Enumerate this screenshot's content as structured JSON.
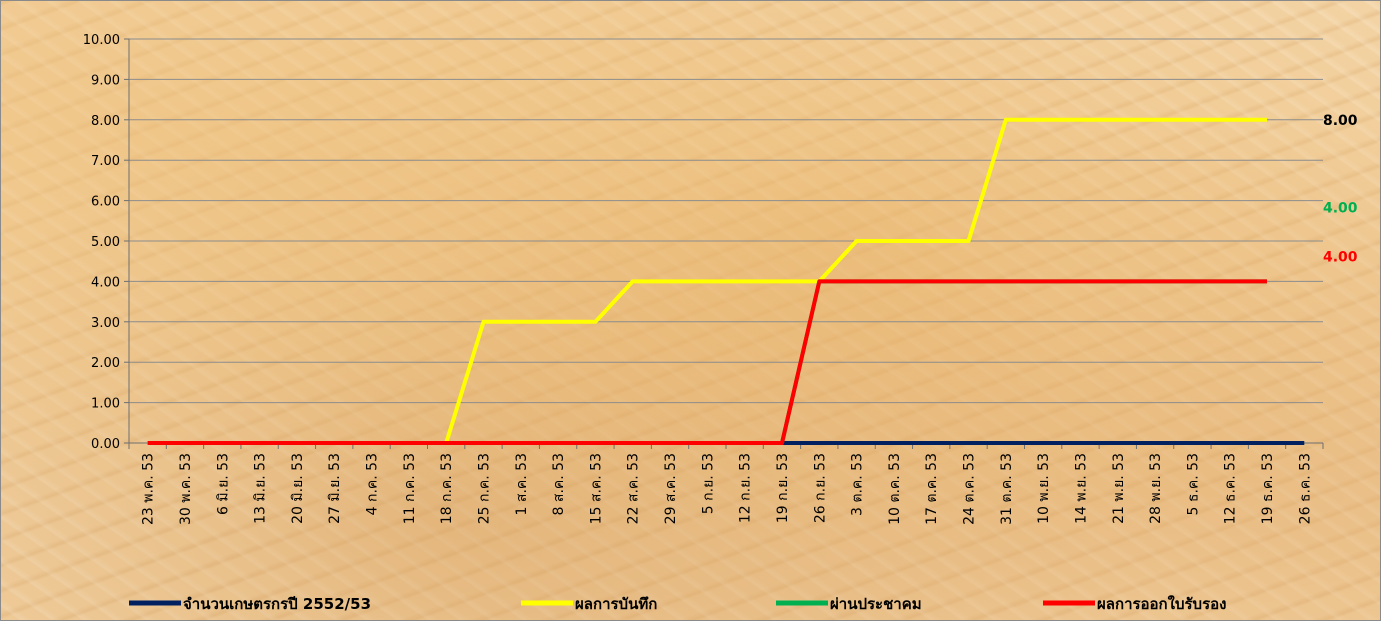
{
  "chart_data": {
    "type": "line",
    "title": "",
    "xlabel": "",
    "ylabel": "",
    "ylim": [
      0,
      10
    ],
    "y_tick_labels": [
      "0.00",
      "1.00",
      "2.00",
      "3.00",
      "4.00",
      "5.00",
      "6.00",
      "7.00",
      "8.00",
      "9.00",
      "10.00"
    ],
    "grid": true,
    "legend_position": "bottom",
    "categories": [
      "23 พ.ค. 53",
      "30 พ.ค. 53",
      "6 มิ.ย. 53",
      "13 มิ.ย. 53",
      "20 มิ.ย. 53",
      "27 มิ.ย. 53",
      "4 ก.ค. 53",
      "11 ก.ค. 53",
      "18 ก.ค. 53",
      "25 ก.ค. 53",
      "1 ส.ค. 53",
      "8 ส.ค. 53",
      "15 ส.ค. 53",
      "22 ส.ค. 53",
      "29 ส.ค. 53",
      "5 ก.ย. 53",
      "12 ก.ย. 53",
      "19 ก.ย. 53",
      "26 ก.ย. 53",
      "3 ต.ค. 53",
      "10 ต.ค. 53",
      "17 ต.ค. 53",
      "24 ต.ค. 53",
      "31 ต.ค. 53",
      "10 พ.ย. 53",
      "14 พ.ย. 53",
      "21 พ.ย. 53",
      "28 พ.ย. 53",
      "5 ธ.ค. 53",
      "12 ธ.ค. 53",
      "19 ธ.ค. 53",
      "26 ธ.ค. 53"
    ],
    "series": [
      {
        "name": "จำนวนเกษตรกรปี  2552/53",
        "color": "#002060",
        "values": [
          0,
          0,
          0,
          0,
          0,
          0,
          0,
          0,
          0,
          0,
          0,
          0,
          0,
          0,
          0,
          0,
          0,
          0,
          0,
          0,
          0,
          0,
          0,
          0,
          0,
          0,
          0,
          0,
          0,
          0,
          0,
          0
        ]
      },
      {
        "name": "ผลการบันทึก",
        "color": "#FFFF00",
        "values": [
          0,
          0,
          0,
          0,
          0,
          0,
          0,
          0,
          0,
          3,
          3,
          3,
          3,
          4,
          4,
          4,
          4,
          4,
          4,
          5,
          5,
          5,
          5,
          8,
          8,
          8,
          8,
          8,
          8,
          8,
          8,
          null
        ]
      },
      {
        "name": "ผ่านประชาคม",
        "color": "#00B050",
        "values": [
          0,
          0,
          0,
          0,
          0,
          0,
          0,
          0,
          0,
          0,
          0,
          0,
          0,
          0,
          0,
          0,
          0,
          0,
          4,
          4,
          4,
          4,
          4,
          4,
          4,
          4,
          4,
          4,
          4,
          4,
          4,
          null
        ]
      },
      {
        "name": "ผลการออกใบรับรอง",
        "color": "#FF0000",
        "values": [
          0,
          0,
          0,
          0,
          0,
          0,
          0,
          0,
          0,
          0,
          0,
          0,
          0,
          0,
          0,
          0,
          0,
          0,
          4,
          4,
          4,
          4,
          4,
          4,
          4,
          4,
          4,
          4,
          4,
          4,
          4,
          null
        ]
      }
    ],
    "end_labels": [
      {
        "text": "8.00",
        "color": "#000000",
        "value": 8
      },
      {
        "text": "4.00",
        "color": "#00B050",
        "value": 4,
        "offset": "above"
      },
      {
        "text": "4.00",
        "color": "#FF0000",
        "value": 4,
        "offset": "mid"
      }
    ]
  }
}
